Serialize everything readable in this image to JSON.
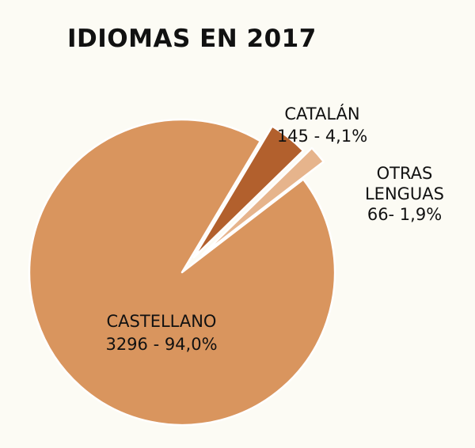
{
  "chart_data": {
    "type": "pie",
    "title": "IDIOMAS EN 2017",
    "slices": [
      {
        "category": "CASTELLANO",
        "value": 3296,
        "percent": "94,0%",
        "value_label": "3296 - 94,0%",
        "color": "#d9955e",
        "exploded": false
      },
      {
        "category": "CATALÁN",
        "value": 145,
        "percent": "4,1%",
        "value_label": "145 - 4,1%",
        "color": "#b2602d",
        "exploded": true
      },
      {
        "category": "OTRAS LENGUAS",
        "category_lines": [
          "OTRAS",
          "LENGUAS"
        ],
        "value": 66,
        "percent": "1,9%",
        "value_label": "66- 1,9%",
        "color": "#e6b48c",
        "exploded": true
      }
    ],
    "legend": "none",
    "grid": false
  },
  "colors": {
    "background": "#fcfbf4",
    "text": "#111111",
    "slice_border": "#ffffff"
  }
}
